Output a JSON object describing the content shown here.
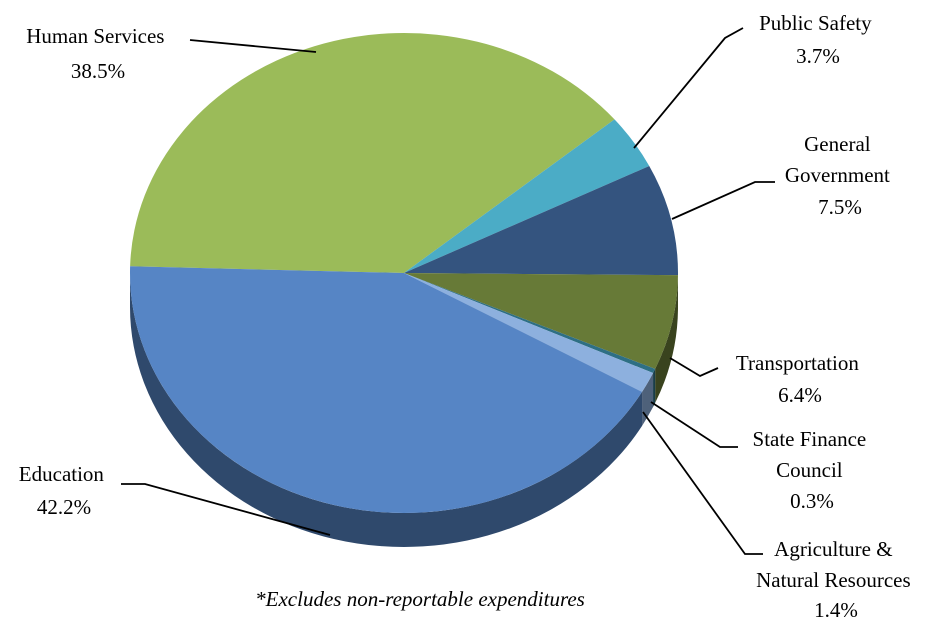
{
  "chart_data": {
    "type": "pie",
    "title": "",
    "slices": [
      {
        "label": "Human Services",
        "value": 38.5,
        "value_text": "38.5%",
        "color": "#9BBB59"
      },
      {
        "label": "Public Safety",
        "value": 3.7,
        "value_text": "3.7%",
        "color": "#4BACC6"
      },
      {
        "label": "General Government",
        "value": 7.5,
        "value_text": "7.5%",
        "color": "#34547F"
      },
      {
        "label": "Transportation",
        "value": 6.4,
        "value_text": "6.4%",
        "color": "#677A37"
      },
      {
        "label": "State Finance Council",
        "value": 0.3,
        "value_text": "0.3%",
        "color": "#2E6F84"
      },
      {
        "label": "Agriculture & Natural Resources",
        "value": 1.4,
        "value_text": "1.4%",
        "color": "#8DB0DE"
      },
      {
        "label": "Education",
        "value": 42.2,
        "value_text": "42.2%",
        "color": "#5685C5"
      }
    ],
    "legend": "none",
    "style": "3d-tilted"
  },
  "footnote": "*Excludes non-reportable expenditures"
}
